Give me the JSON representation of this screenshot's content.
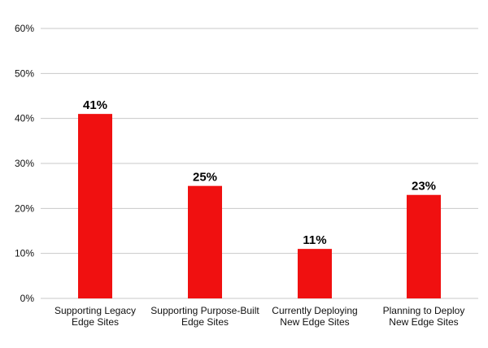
{
  "chart_data": {
    "type": "bar",
    "categories": [
      [
        "Supporting Legacy",
        "Edge Sites"
      ],
      [
        "Supporting Purpose-Built",
        "Edge Sites"
      ],
      [
        "Currently Deploying",
        "New Edge Sites"
      ],
      [
        "Planning to Deploy",
        "New Edge Sites"
      ]
    ],
    "values": [
      41,
      25,
      11,
      23
    ],
    "data_labels": [
      "41%",
      "25%",
      "11%",
      "23%"
    ],
    "ylim": [
      0,
      60
    ],
    "yticks": [
      0,
      10,
      20,
      30,
      40,
      50,
      60
    ],
    "ytick_labels": [
      "0%",
      "10%",
      "20%",
      "30%",
      "40%",
      "50%",
      "60%"
    ],
    "title": "",
    "xlabel": "",
    "ylabel": "",
    "grid": "horizontal",
    "bar_color": "#f01010",
    "grid_color": "#c8c8c8"
  }
}
